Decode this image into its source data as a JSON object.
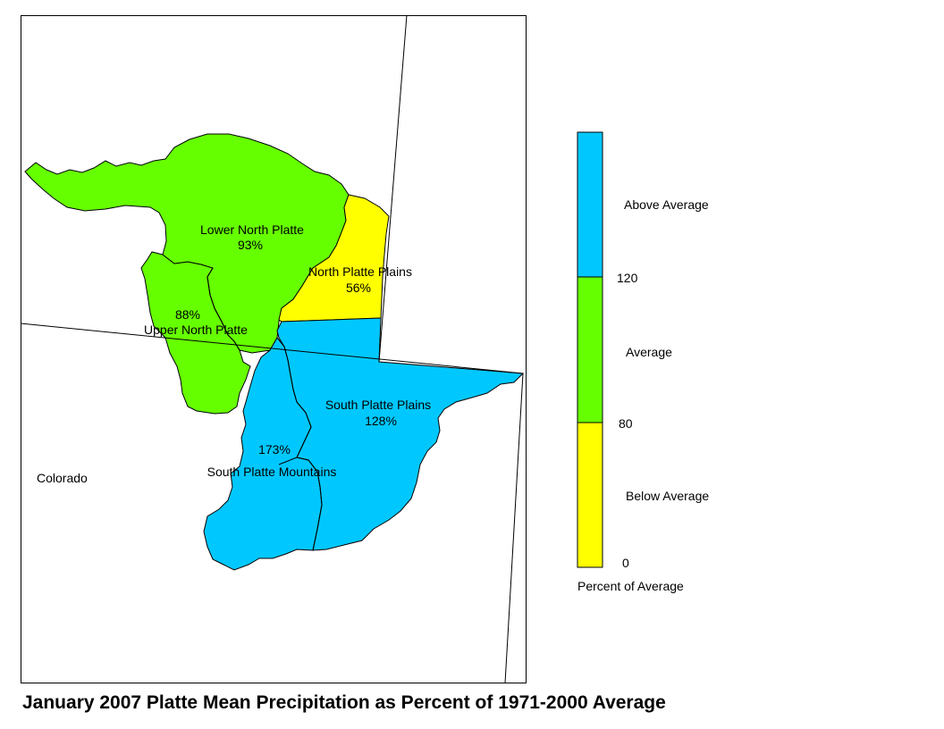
{
  "title": "January 2007 Platte Mean Precipitation as Percent of 1971-2000 Average",
  "colors": {
    "above": "#00c8ff",
    "average": "#66ff00",
    "below": "#ffff00"
  },
  "map": {
    "state_label": "Colorado",
    "basins": [
      {
        "name": "Lower North Platte",
        "value": "93%",
        "category": "average"
      },
      {
        "name": "North Platte Plains",
        "value": "56%",
        "category": "below"
      },
      {
        "name": "Upper North Platte",
        "value": "88%",
        "category": "average"
      },
      {
        "name": "South Platte Plains",
        "value": "128%",
        "category": "above"
      },
      {
        "name": "South Platte Mountains",
        "value": "173%",
        "category": "above"
      }
    ]
  },
  "legend": {
    "caption": "Percent of Average",
    "categories": [
      {
        "label": "Above Average",
        "color": "#00c8ff"
      },
      {
        "label": "Average",
        "color": "#66ff00"
      },
      {
        "label": "Below Average",
        "color": "#ffff00"
      }
    ],
    "breaks": [
      "120",
      "80",
      "0"
    ]
  }
}
